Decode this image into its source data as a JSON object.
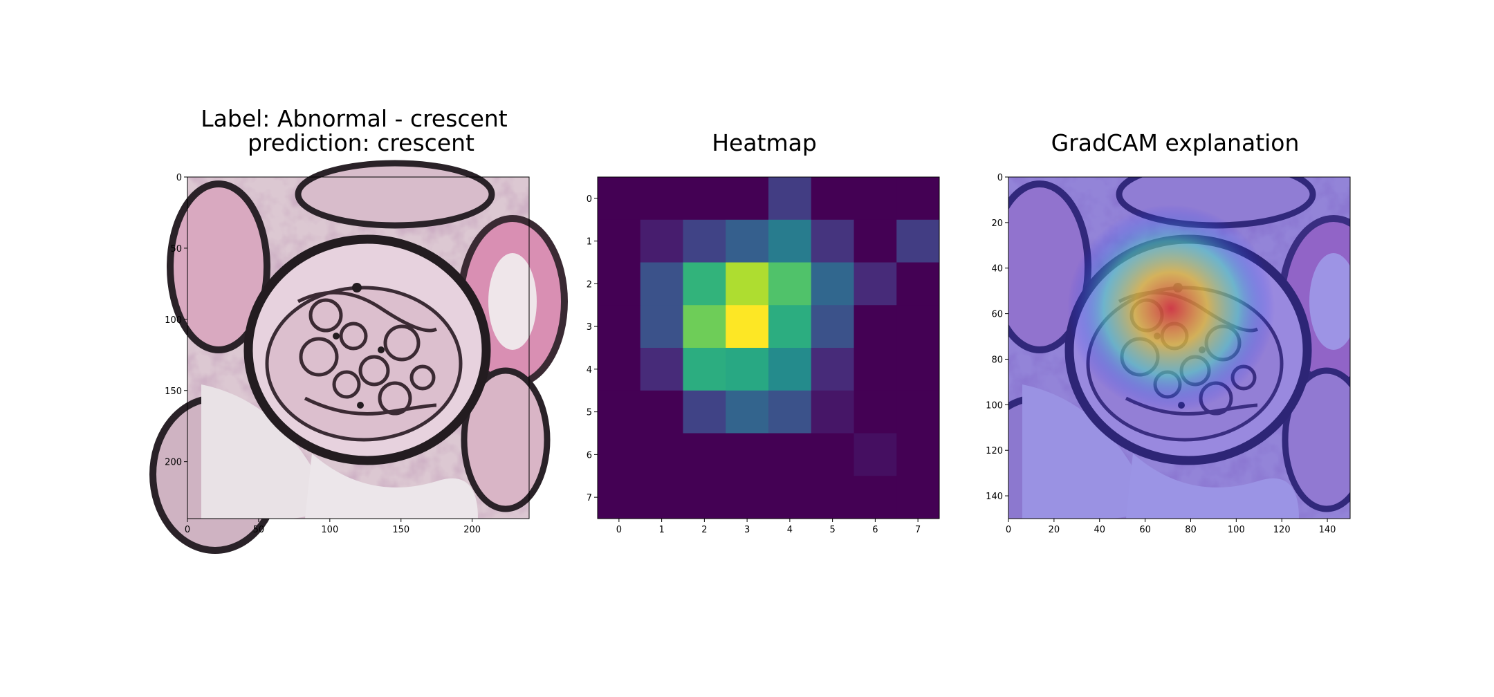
{
  "panels": [
    {
      "title_lines": [
        "Label: Abnormal - crescent",
        "prediction: crescent"
      ],
      "content": "histology image",
      "x_ticks": [
        "0",
        "50",
        "100",
        "150",
        "200"
      ],
      "y_ticks": [
        "0",
        "50",
        "100",
        "150",
        "200"
      ],
      "x_range": [
        0,
        240
      ],
      "y_range": [
        0,
        240
      ]
    },
    {
      "title_lines": [
        "Heatmap"
      ],
      "content": "heatmap",
      "x_ticks": [
        "0",
        "1",
        "2",
        "3",
        "4",
        "5",
        "6",
        "7"
      ],
      "y_ticks": [
        "0",
        "1",
        "2",
        "3",
        "4",
        "5",
        "6",
        "7"
      ]
    },
    {
      "title_lines": [
        "GradCAM explanation"
      ],
      "content": "histology image with heatmap overlay",
      "x_ticks": [
        "0",
        "20",
        "40",
        "60",
        "80",
        "100",
        "120",
        "140"
      ],
      "y_ticks": [
        "0",
        "20",
        "40",
        "60",
        "80",
        "100",
        "120",
        "140"
      ],
      "x_range": [
        0,
        150
      ],
      "y_range": [
        0,
        150
      ]
    }
  ],
  "chart_data": {
    "type": "heatmap",
    "title": "Heatmap",
    "colormap": "viridis",
    "x": [
      0,
      1,
      2,
      3,
      4,
      5,
      6,
      7
    ],
    "y": [
      0,
      1,
      2,
      3,
      4,
      5,
      6,
      7
    ],
    "values": [
      [
        0.0,
        0.0,
        0.0,
        0.0,
        0.18,
        0.0,
        0.0,
        0.0
      ],
      [
        0.0,
        0.08,
        0.2,
        0.3,
        0.42,
        0.15,
        0.0,
        0.18
      ],
      [
        0.0,
        0.25,
        0.65,
        0.88,
        0.72,
        0.33,
        0.12,
        0.0
      ],
      [
        0.0,
        0.25,
        0.78,
        1.0,
        0.62,
        0.25,
        0.0,
        0.0
      ],
      [
        0.0,
        0.12,
        0.62,
        0.6,
        0.48,
        0.12,
        0.0,
        0.0
      ],
      [
        0.0,
        0.0,
        0.2,
        0.32,
        0.25,
        0.06,
        0.0,
        0.0
      ],
      [
        0.0,
        0.0,
        0.0,
        0.0,
        0.0,
        0.0,
        0.04,
        0.0
      ],
      [
        0.0,
        0.0,
        0.0,
        0.0,
        0.0,
        0.0,
        0.0,
        0.0
      ]
    ],
    "grid": false
  }
}
